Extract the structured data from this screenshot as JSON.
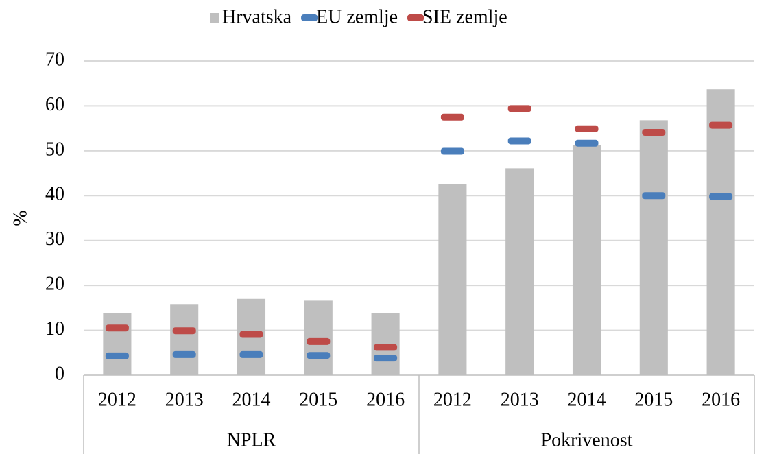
{
  "chart_data": {
    "type": "bar",
    "ylabel": "%",
    "categories": [
      "2012",
      "2013",
      "2014",
      "2015",
      "2016",
      "2012",
      "2013",
      "2014",
      "2015",
      "2016"
    ],
    "groups": [
      "NPLR",
      "Pokrivenost"
    ],
    "series": [
      {
        "name": "Hrvatska",
        "type": "bar",
        "color": "#bfbfbf",
        "values": [
          13.9,
          15.7,
          17.0,
          16.6,
          13.8,
          42.5,
          46.1,
          51.2,
          56.8,
          63.7
        ]
      },
      {
        "name": "EU zemlje",
        "type": "dash",
        "color": "#4a7ebb",
        "values": [
          4.3,
          4.6,
          4.6,
          4.4,
          3.8,
          49.9,
          52.2,
          51.7,
          40.0,
          39.8
        ]
      },
      {
        "name": "SIE zemlje",
        "type": "dash",
        "color": "#be4b48",
        "values": [
          10.5,
          9.9,
          9.1,
          7.5,
          6.2,
          57.5,
          59.4,
          54.9,
          54.1,
          55.7
        ]
      }
    ],
    "ylim": [
      0,
      70
    ],
    "yticks": [
      0,
      10,
      20,
      30,
      40,
      50,
      60,
      70
    ],
    "grid": true,
    "legend": "top"
  }
}
